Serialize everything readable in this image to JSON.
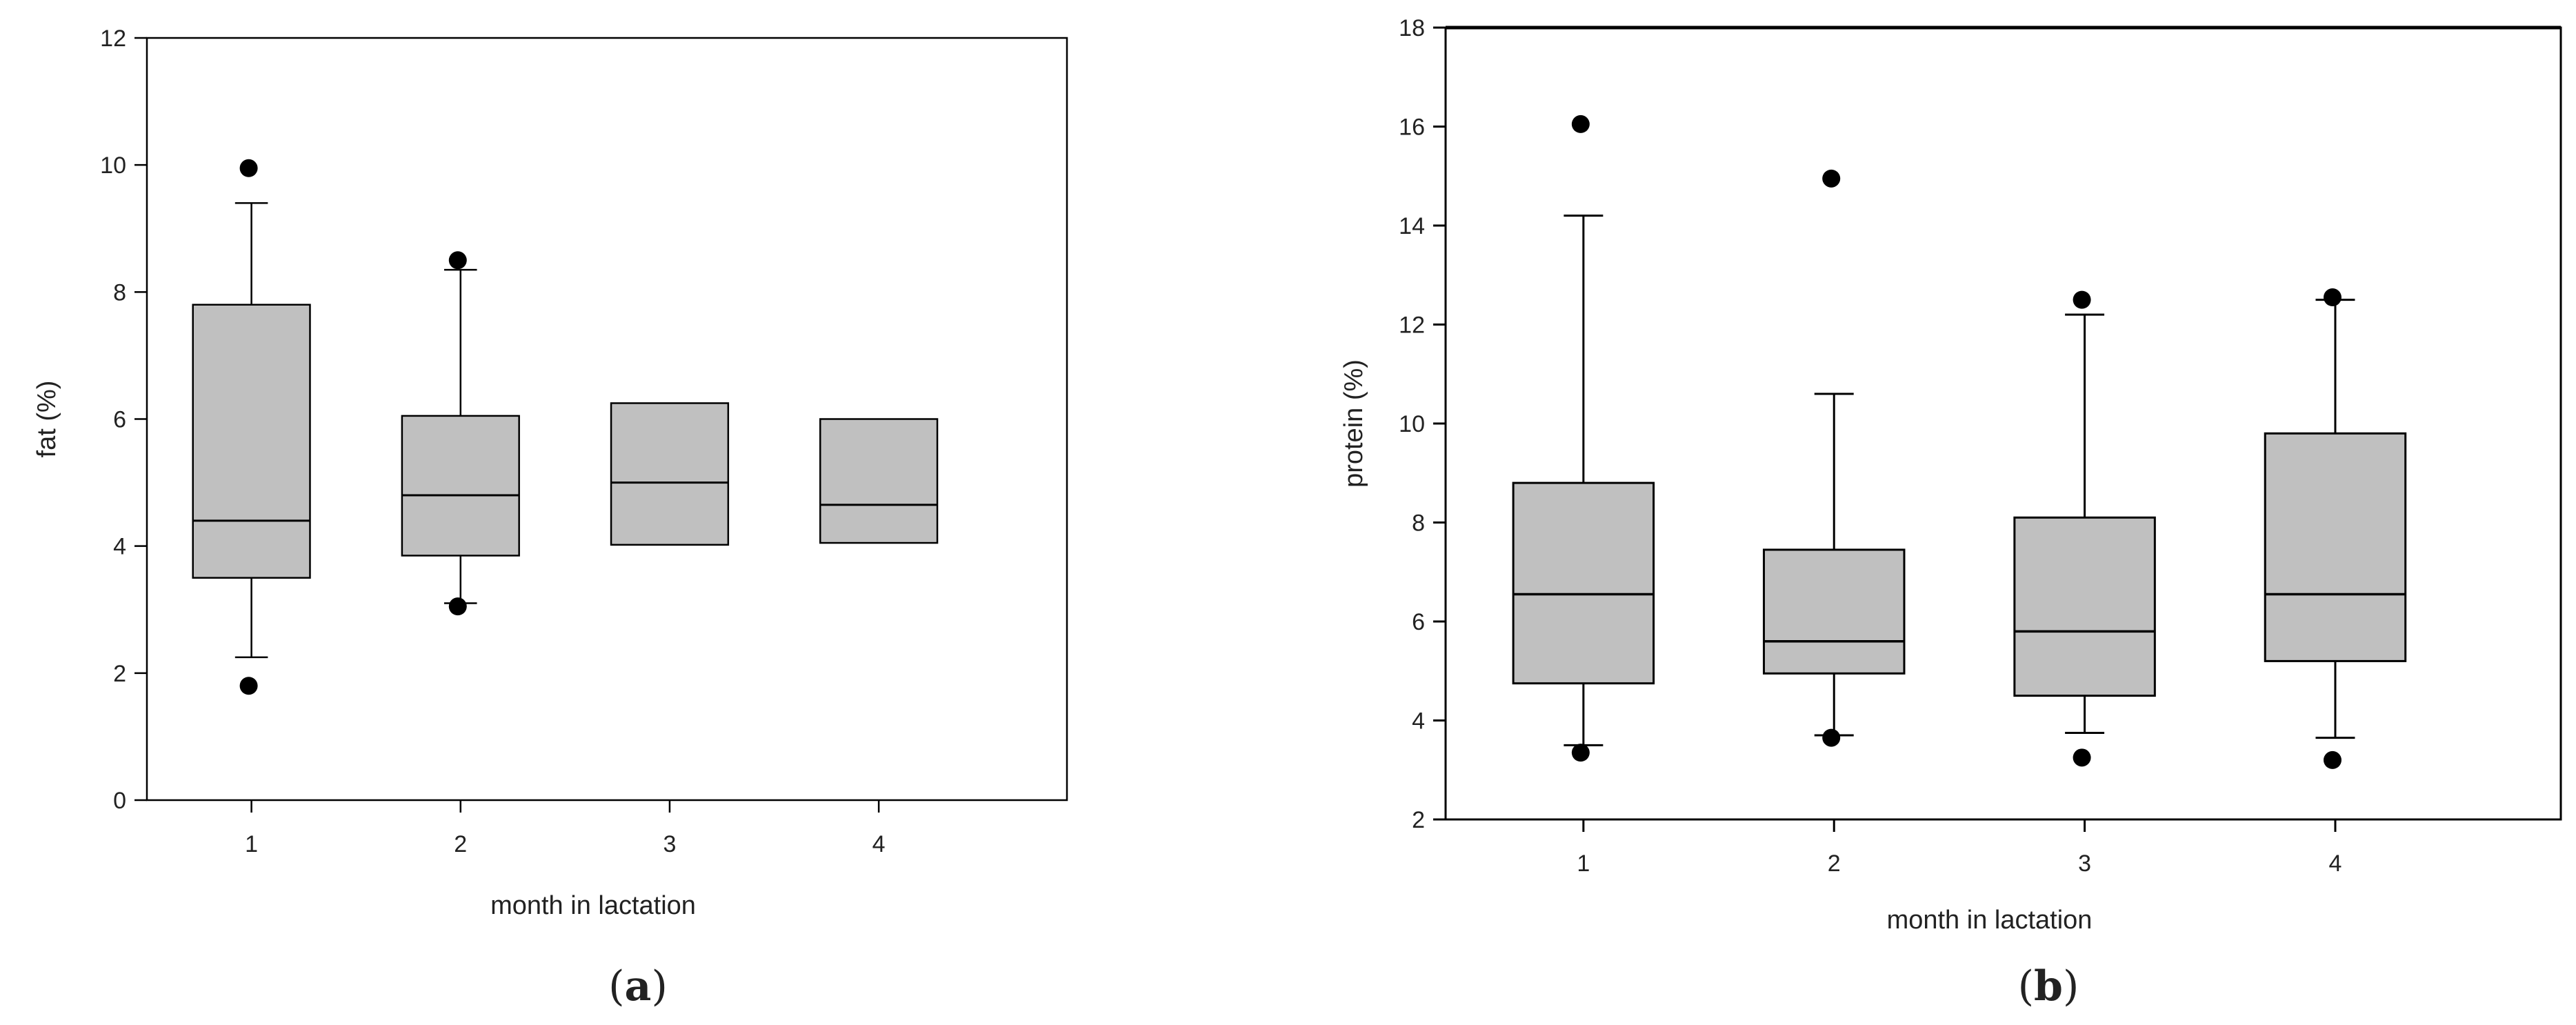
{
  "chart_data": [
    {
      "type": "box",
      "panel_label": "a",
      "xlabel": "month in lactation",
      "ylabel": "fat (%)",
      "categories": [
        "1",
        "2",
        "3",
        "4"
      ],
      "ylim": [
        0,
        12
      ],
      "yticks": [
        0,
        2,
        4,
        6,
        8,
        10,
        12
      ],
      "grid": false,
      "boxes": [
        {
          "category": "1",
          "whisker_low": 2.25,
          "q1": 3.5,
          "median": 4.4,
          "q3": 7.8,
          "whisker_high": 9.4,
          "outliers": [
            9.95,
            1.8
          ]
        },
        {
          "category": "2",
          "whisker_low": 3.1,
          "q1": 3.85,
          "median": 4.8,
          "q3": 6.05,
          "whisker_high": 8.35,
          "outliers": [
            8.5,
            3.05
          ]
        },
        {
          "category": "3",
          "whisker_low": null,
          "q1": 4.02,
          "median": 5.0,
          "q3": 6.25,
          "whisker_high": null,
          "outliers": []
        },
        {
          "category": "4",
          "whisker_low": null,
          "q1": 4.05,
          "median": 4.65,
          "q3": 6.0,
          "whisker_high": null,
          "outliers": []
        }
      ]
    },
    {
      "type": "box",
      "panel_label": "b",
      "xlabel": "month in lactation",
      "ylabel": "protein (%)",
      "categories": [
        "1",
        "2",
        "3",
        "4"
      ],
      "ylim": [
        2,
        18
      ],
      "yticks": [
        2,
        4,
        6,
        8,
        10,
        12,
        14,
        16,
        18
      ],
      "grid": false,
      "boxes": [
        {
          "category": "1",
          "whisker_low": 3.5,
          "q1": 4.75,
          "median": 6.55,
          "q3": 8.8,
          "whisker_high": 14.2,
          "outliers": [
            16.05,
            3.35
          ]
        },
        {
          "category": "2",
          "whisker_low": 3.7,
          "q1": 4.95,
          "median": 5.6,
          "q3": 7.45,
          "whisker_high": 10.6,
          "outliers": [
            14.95,
            3.65
          ]
        },
        {
          "category": "3",
          "whisker_low": 3.75,
          "q1": 4.5,
          "median": 5.8,
          "q3": 8.1,
          "whisker_high": 12.2,
          "outliers": [
            12.5,
            3.25
          ]
        },
        {
          "category": "4",
          "whisker_low": 3.65,
          "q1": 5.2,
          "median": 6.55,
          "q3": 9.8,
          "whisker_high": 12.5,
          "outliers": [
            12.55,
            3.2
          ]
        }
      ]
    }
  ],
  "style": {
    "box_fill": "#c0c0c0",
    "line_color": "#000000",
    "outlier_color": "#000000"
  }
}
